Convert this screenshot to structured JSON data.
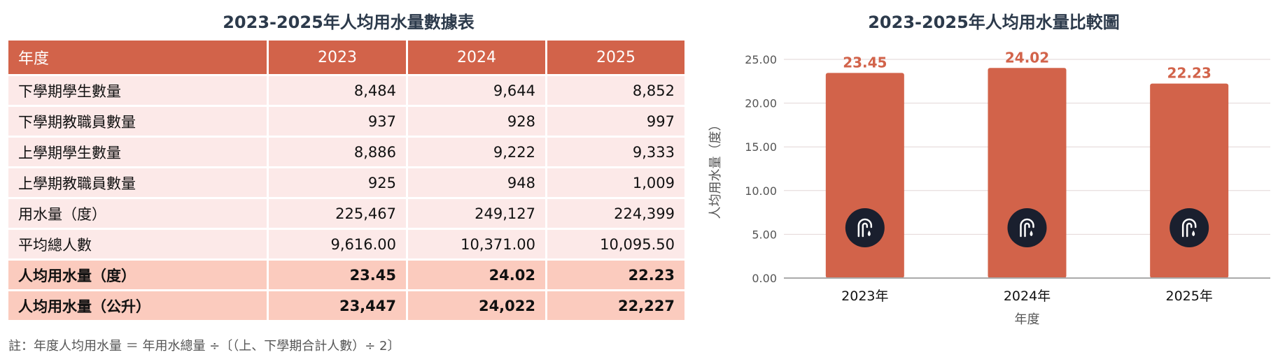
{
  "table": {
    "title": "2023-2025年人均用水量數據表",
    "headers": [
      "年度",
      "2023",
      "2024",
      "2025"
    ],
    "rows": [
      {
        "label": "下學期學生數量",
        "values": [
          "8,484",
          "9,644",
          "8,852"
        ],
        "highlight": false
      },
      {
        "label": "下學期教職員數量",
        "values": [
          "937",
          "928",
          "997"
        ],
        "highlight": false
      },
      {
        "label": "上學期學生數量",
        "values": [
          "8,886",
          "9,222",
          "9,333"
        ],
        "highlight": false
      },
      {
        "label": "上學期教職員數量",
        "values": [
          "925",
          "948",
          "1,009"
        ],
        "highlight": false
      },
      {
        "label": "用水量（度）",
        "values": [
          "225,467",
          "249,127",
          "224,399"
        ],
        "highlight": false
      },
      {
        "label": "平均總人數",
        "values": [
          "9,616.00",
          "10,371.00",
          "10,095.50"
        ],
        "highlight": false
      },
      {
        "label": "人均用水量（度）",
        "values": [
          "23.45",
          "24.02",
          "22.23"
        ],
        "highlight": true
      },
      {
        "label": "人均用水量（公升）",
        "values": [
          "23,447",
          "24,022",
          "22,227"
        ],
        "highlight": true
      }
    ],
    "note": "註：年度人均用水量 ＝ 年用水總量 ÷〔（上、下學期合計人數）÷ 2〕"
  },
  "chart_data": {
    "type": "bar",
    "title": "2023-2025年人均用水量比較圖",
    "categories": [
      "2023年",
      "2024年",
      "2025年"
    ],
    "values": [
      23.45,
      24.02,
      22.23
    ],
    "value_labels": [
      "23.45",
      "24.02",
      "22.23"
    ],
    "xlabel": "年度",
    "ylabel": "人均用水量（度）",
    "ylim": [
      0,
      25
    ],
    "yticks": [
      0,
      5,
      10,
      15,
      20,
      25
    ],
    "ytick_labels": [
      "0.00",
      "5.00",
      "10.00",
      "15.00",
      "20.00",
      "25.00"
    ],
    "grid": true,
    "bar_color": "#d2634a",
    "bar_icon": "water-faucet-icon",
    "icon_bg_color": "#1a1f2e"
  }
}
